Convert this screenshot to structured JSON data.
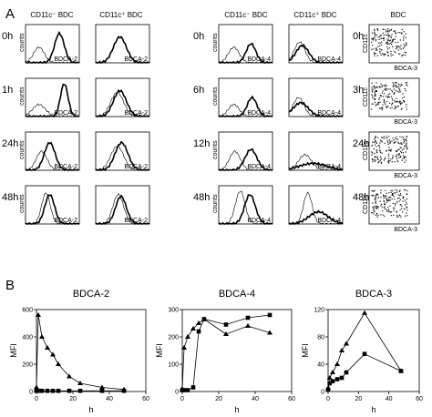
{
  "panel_a": {
    "letter": "A",
    "col_headers": [
      "CD11c⁻ BDC",
      "CD11c⁺ BDC",
      "CD11c⁻ BDC",
      "CD11c⁺ BDC",
      "BDC"
    ],
    "times_left": [
      "0h",
      "1h",
      "24h",
      "48h"
    ],
    "times_mid": [
      "0h",
      "6h",
      "12h",
      "48h"
    ],
    "times_right": [
      "0h",
      "3h",
      "24h",
      "48h"
    ],
    "counts_label": "counts",
    "cd11c_label": "CD11c",
    "x_labels": [
      "BDCA-2",
      "BDCA-2",
      "BDCA-4",
      "BDCA-4",
      "BDCA-3"
    ]
  },
  "panel_b": {
    "letter": "B"
  },
  "chart_data": [
    {
      "type": "line",
      "title": "BDCA-2",
      "xlabel": "h",
      "ylabel": "MFI",
      "xlim": [
        0,
        60
      ],
      "ylim": [
        0,
        600
      ],
      "xticks": [
        "0",
        "20",
        "40",
        "60"
      ],
      "yticks": [
        "0",
        "200",
        "400",
        "600"
      ],
      "series": [
        {
          "marker": "triangle",
          "x": [
            0,
            1,
            3,
            6,
            9,
            12,
            18,
            24,
            36,
            48
          ],
          "y": [
            30,
            560,
            400,
            320,
            270,
            200,
            110,
            60,
            30,
            15
          ]
        },
        {
          "marker": "square",
          "x": [
            0,
            1,
            3,
            6,
            9,
            12,
            18,
            24,
            36,
            48
          ],
          "y": [
            5,
            5,
            5,
            5,
            5,
            5,
            5,
            5,
            5,
            5
          ]
        }
      ]
    },
    {
      "type": "line",
      "title": "BDCA-4",
      "xlabel": "h",
      "ylabel": "MFI",
      "xlim": [
        0,
        60
      ],
      "ylim": [
        0,
        300
      ],
      "xticks": [
        "0",
        "20",
        "40",
        "60"
      ],
      "yticks": [
        "0",
        "100",
        "200",
        "300"
      ],
      "series": [
        {
          "marker": "triangle",
          "x": [
            0,
            1,
            3,
            6,
            9,
            12,
            24,
            36,
            48
          ],
          "y": [
            10,
            160,
            200,
            230,
            250,
            265,
            210,
            240,
            215
          ]
        },
        {
          "marker": "square",
          "x": [
            0,
            1,
            3,
            6,
            9,
            12,
            24,
            36,
            48
          ],
          "y": [
            5,
            5,
            5,
            15,
            220,
            265,
            245,
            270,
            280
          ]
        }
      ]
    },
    {
      "type": "line",
      "title": "BDCA-3",
      "xlabel": "h",
      "ylabel": "MFI",
      "xlim": [
        0,
        60
      ],
      "ylim": [
        0,
        120
      ],
      "xticks": [
        "0",
        "20",
        "40",
        "60"
      ],
      "yticks": [
        "0",
        "40",
        "80",
        "120"
      ],
      "series": [
        {
          "marker": "triangle",
          "x": [
            0,
            1,
            3,
            6,
            9,
            12,
            24,
            48
          ],
          "y": [
            5,
            20,
            28,
            40,
            60,
            70,
            115,
            30
          ]
        },
        {
          "marker": "square",
          "x": [
            0,
            1,
            3,
            6,
            9,
            12,
            24,
            48
          ],
          "y": [
            3,
            12,
            15,
            18,
            20,
            28,
            55,
            30
          ]
        }
      ]
    }
  ]
}
